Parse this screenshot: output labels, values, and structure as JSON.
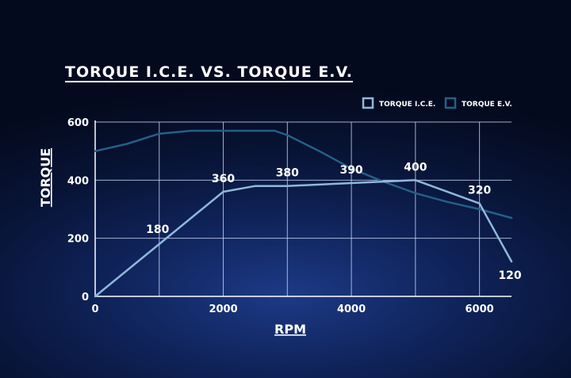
{
  "chart_data": {
    "type": "line",
    "title": "TORQUE I.C.E. VS. TORQUE E.V.",
    "xlabel": "RPM",
    "ylabel": "TORQUE",
    "xlim": [
      0,
      6500
    ],
    "ylim": [
      0,
      600
    ],
    "x_ticks": [
      0,
      2000,
      4000,
      6000
    ],
    "y_ticks": [
      0,
      200,
      400,
      600
    ],
    "grid": true,
    "legend_position": "top-right",
    "series": [
      {
        "name": "TORQUE I.C.E.",
        "color": "#8fb8dc",
        "points": [
          [
            0,
            0
          ],
          [
            1000,
            180
          ],
          [
            2000,
            360
          ],
          [
            2500,
            380
          ],
          [
            3000,
            380
          ],
          [
            4000,
            390
          ],
          [
            5000,
            400
          ],
          [
            6000,
            320
          ],
          [
            6500,
            120
          ]
        ],
        "labels": [
          {
            "x": 1000,
            "y": 180,
            "text": "180"
          },
          {
            "x": 2000,
            "y": 360,
            "text": "360"
          },
          {
            "x": 3000,
            "y": 380,
            "text": "380"
          },
          {
            "x": 4000,
            "y": 390,
            "text": "390"
          },
          {
            "x": 5000,
            "y": 400,
            "text": "400"
          },
          {
            "x": 6000,
            "y": 320,
            "text": "320"
          },
          {
            "x": 6500,
            "y": 120,
            "text": "120"
          }
        ]
      },
      {
        "name": "TORQUE E.V.",
        "color": "#245f86",
        "points": [
          [
            0,
            500
          ],
          [
            500,
            525
          ],
          [
            1000,
            560
          ],
          [
            1500,
            570
          ],
          [
            2000,
            570
          ],
          [
            2500,
            570
          ],
          [
            2800,
            570
          ],
          [
            3000,
            555
          ],
          [
            3500,
            500
          ],
          [
            4000,
            440
          ],
          [
            4500,
            395
          ],
          [
            5000,
            355
          ],
          [
            5500,
            325
          ],
          [
            6000,
            300
          ],
          [
            6500,
            270
          ]
        ],
        "labels": []
      }
    ]
  }
}
